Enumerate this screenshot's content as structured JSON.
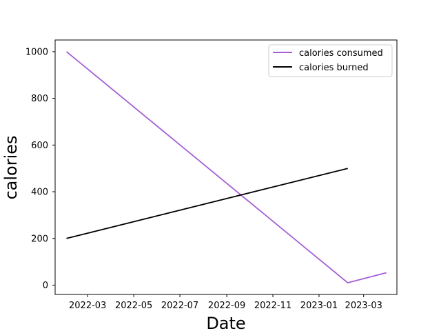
{
  "chart_data": {
    "type": "line",
    "title": "",
    "xlabel": "Date",
    "ylabel": "calories",
    "x_ticks": [
      "2022-03",
      "2022-05",
      "2022-07",
      "2022-09",
      "2022-11",
      "2023-01",
      "2023-03"
    ],
    "y_ticks": [
      "0",
      "200",
      "400",
      "600",
      "800",
      "1000"
    ],
    "xlim": [
      "2022-01-17",
      "2023-04-14"
    ],
    "ylim": [
      -40,
      1050
    ],
    "grid": false,
    "legend_position": "top-right",
    "series": [
      {
        "name": "calories consumed",
        "color": "#a35fd6",
        "points": [
          {
            "x": "2022-02-01",
            "y": 1000
          },
          {
            "x": "2023-02-08",
            "y": 10
          },
          {
            "x": "2023-03-31",
            "y": 53
          }
        ]
      },
      {
        "name": "calories burned",
        "color": "#000000",
        "points": [
          {
            "x": "2022-02-01",
            "y": 200
          },
          {
            "x": "2023-02-08",
            "y": 500
          }
        ]
      }
    ]
  }
}
